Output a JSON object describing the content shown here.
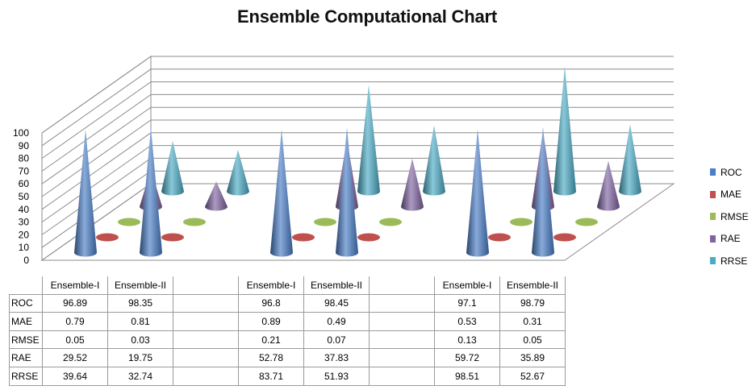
{
  "chart_data": {
    "type": "bar",
    "title": "Ensemble Computational Chart",
    "categories": [
      "Ensemble-I",
      "Ensemble-II",
      "",
      "Ensemble-I",
      "Ensemble-II",
      "",
      "Ensemble-I",
      "Ensemble-II"
    ],
    "series": [
      {
        "name": "ROC",
        "color": "#4a7ec8",
        "values": [
          96.89,
          98.35,
          null,
          96.8,
          98.45,
          null,
          97.1,
          98.79
        ]
      },
      {
        "name": "MAE",
        "color": "#c0504d",
        "values": [
          0.79,
          0.81,
          null,
          0.89,
          0.49,
          null,
          0.53,
          0.31
        ]
      },
      {
        "name": "RMSE",
        "color": "#9bbb59",
        "values": [
          0.05,
          0.03,
          null,
          0.21,
          0.07,
          null,
          0.13,
          0.05
        ]
      },
      {
        "name": "RAE",
        "color": "#8064a2",
        "values": [
          29.52,
          19.75,
          null,
          52.78,
          37.83,
          null,
          59.72,
          35.89
        ]
      },
      {
        "name": "RRSE",
        "color": "#4bacc6",
        "values": [
          39.64,
          32.74,
          null,
          83.71,
          51.93,
          null,
          98.51,
          52.67
        ]
      }
    ],
    "ylim": [
      0,
      100
    ],
    "yticks": [
      0,
      10,
      20,
      30,
      40,
      50,
      60,
      70,
      80,
      90,
      100
    ],
    "grid": true,
    "legend": "right",
    "style": "3d-cone",
    "data_table": true
  }
}
